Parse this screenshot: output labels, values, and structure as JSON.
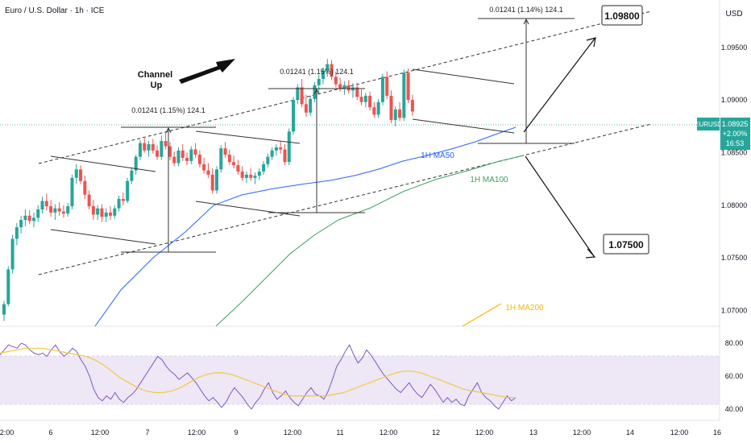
{
  "header": {
    "title": "Euro / U.S. Dollar · 1h · ICE"
  },
  "price_axis": {
    "currency": "USD",
    "ticks": [
      "1.09500",
      "1.09000",
      "1.08500",
      "1.08000",
      "1.07500",
      "1.07000"
    ],
    "symbol_tag": {
      "symbol": "EURUSD",
      "price": "1.08925",
      "change": "+2.00%",
      "countdown": "16:53"
    }
  },
  "rsi_axis": {
    "ticks": [
      "80.00",
      "60.00",
      "40.00"
    ]
  },
  "time_axis": {
    "ticks": [
      "12:00",
      "6",
      "12:00",
      "7",
      "12:00",
      "9",
      "12:00",
      "11",
      "12:00",
      "12",
      "12:00",
      "13",
      "12:00",
      "14",
      "12:00",
      "16"
    ]
  },
  "annotations": {
    "channel_label": "Channel Up",
    "measure_1": "0.01241 (1.15%) 124.1",
    "measure_2": "0.01241 (1.15%) 124.1",
    "measure_3": "0.01241 (1.14%) 124.1",
    "target_up": "1.09800",
    "target_down": "1.07500",
    "ma50_label": "1H MA50",
    "ma100_label": "1H MA100",
    "ma200_label": "1H MA200"
  },
  "colors": {
    "up": "#26a69a",
    "down": "#ef5350",
    "ma50": "#2962ff",
    "ma100": "#3fa060",
    "ma200": "#f5b800",
    "rsi": "#7e57c2",
    "rsi_ma": "#f5c842",
    "rsi_band": "#ede7f6"
  },
  "chart_data": {
    "type": "candlestick",
    "title": "Euro / U.S. Dollar · 1h · ICE",
    "ylim": [
      1.0685,
      1.0995
    ],
    "series": [
      {
        "name": "1H MA50",
        "points": [
          [
            1.0,
            1.0695
          ],
          [
            2.0,
            1.0772
          ],
          [
            2.6,
            1.081
          ],
          [
            3.3,
            1.0825
          ],
          [
            4.0,
            1.0826
          ],
          [
            4.5,
            1.0838
          ],
          [
            5.0,
            1.0846
          ],
          [
            5.5,
            1.086
          ],
          [
            5.9,
            1.0873
          ],
          [
            6.4,
            1.0887
          ]
        ]
      },
      {
        "name": "1H MA100",
        "points": [
          [
            2.05,
            1.0695
          ],
          [
            2.5,
            1.072
          ],
          [
            3.0,
            1.0752
          ],
          [
            3.5,
            1.0785
          ],
          [
            4.0,
            1.081
          ],
          [
            4.5,
            1.0828
          ],
          [
            5.0,
            1.0843
          ],
          [
            5.5,
            1.0852
          ],
          [
            6.0,
            1.086
          ],
          [
            6.3,
            1.0864
          ]
        ]
      },
      {
        "name": "1H MA200",
        "points": [
          [
            5.8,
            1.0697
          ],
          [
            6.0,
            1.0708
          ]
        ]
      }
    ],
    "channel": {
      "upper": [
        [
          0.4,
          1.0862
        ],
        [
          6.8,
          1.0989
        ]
      ],
      "lower": [
        [
          0.4,
          1.0759
        ],
        [
          6.8,
          1.0885
        ]
      ]
    },
    "targets": [
      1.098,
      1.075
    ],
    "candles_ohlc": [
      [
        1.0696,
        1.0709,
        1.069,
        1.0706
      ],
      [
        1.0706,
        1.0742,
        1.0704,
        1.0739
      ],
      [
        1.0739,
        1.0772,
        1.0735,
        1.0768
      ],
      [
        1.0768,
        1.0783,
        1.0762,
        1.0779
      ],
      [
        1.0779,
        1.079,
        1.0773,
        1.0786
      ],
      [
        1.0786,
        1.0796,
        1.078,
        1.079
      ],
      [
        1.079,
        1.0795,
        1.0782,
        1.0785
      ],
      [
        1.0785,
        1.0793,
        1.0779,
        1.0788
      ],
      [
        1.0788,
        1.08,
        1.0784,
        1.0796
      ],
      [
        1.0796,
        1.0808,
        1.0792,
        1.0804
      ],
      [
        1.0804,
        1.0811,
        1.0795,
        1.0799
      ],
      [
        1.0799,
        1.0805,
        1.0789,
        1.0793
      ],
      [
        1.0793,
        1.0801,
        1.0786,
        1.0797
      ],
      [
        1.0797,
        1.0803,
        1.079,
        1.0794
      ],
      [
        1.0794,
        1.08,
        1.0788,
        1.0792
      ],
      [
        1.0792,
        1.0802,
        1.0789,
        1.0799
      ],
      [
        1.0799,
        1.0829,
        1.0796,
        1.0826
      ],
      [
        1.0826,
        1.0839,
        1.082,
        1.0834
      ],
      [
        1.0834,
        1.0838,
        1.082,
        1.0823
      ],
      [
        1.0823,
        1.0828,
        1.0806,
        1.081
      ],
      [
        1.081,
        1.0814,
        1.0796,
        1.0799
      ],
      [
        1.0799,
        1.0805,
        1.0786,
        1.0791
      ],
      [
        1.0791,
        1.08,
        1.0786,
        1.0797
      ],
      [
        1.0797,
        1.0801,
        1.0784,
        1.0789
      ],
      [
        1.0789,
        1.0797,
        1.0784,
        1.0793
      ],
      [
        1.0793,
        1.0799,
        1.0786,
        1.079
      ],
      [
        1.079,
        1.08,
        1.0787,
        1.0797
      ],
      [
        1.0797,
        1.0809,
        1.0794,
        1.0806
      ],
      [
        1.0806,
        1.0812,
        1.08,
        1.0804
      ],
      [
        1.0804,
        1.0826,
        1.0802,
        1.0823
      ],
      [
        1.0823,
        1.0836,
        1.082,
        1.0833
      ],
      [
        1.0833,
        1.0848,
        1.0829,
        1.0846
      ],
      [
        1.0846,
        1.0862,
        1.0843,
        1.0859
      ],
      [
        1.0859,
        1.0865,
        1.085,
        1.0852
      ],
      [
        1.0852,
        1.0861,
        1.0846,
        1.0858
      ],
      [
        1.0858,
        1.0863,
        1.0849,
        1.0852
      ],
      [
        1.0852,
        1.0857,
        1.0843,
        1.0846
      ],
      [
        1.0846,
        1.0866,
        1.0843,
        1.0861
      ],
      [
        1.0861,
        1.087,
        1.0853,
        1.0856
      ],
      [
        1.0856,
        1.086,
        1.0843,
        1.0846
      ],
      [
        1.0846,
        1.0851,
        1.0837,
        1.084
      ],
      [
        1.084,
        1.0855,
        1.0837,
        1.0852
      ],
      [
        1.0852,
        1.0858,
        1.0842,
        1.0845
      ],
      [
        1.0845,
        1.085,
        1.0838,
        1.0842
      ],
      [
        1.0842,
        1.0856,
        1.0839,
        1.0853
      ],
      [
        1.0853,
        1.0859,
        1.0845,
        1.0848
      ],
      [
        1.0848,
        1.0852,
        1.0836,
        1.0839
      ],
      [
        1.0839,
        1.0845,
        1.083,
        1.0833
      ],
      [
        1.0833,
        1.084,
        1.0826,
        1.0829
      ],
      [
        1.0829,
        1.0835,
        1.0811,
        1.0814
      ],
      [
        1.0814,
        1.0837,
        1.0811,
        1.0834
      ],
      [
        1.0834,
        1.0857,
        1.0831,
        1.0854
      ],
      [
        1.0854,
        1.086,
        1.0845,
        1.0848
      ],
      [
        1.0848,
        1.0853,
        1.0838,
        1.0841
      ],
      [
        1.0841,
        1.0847,
        1.0835,
        1.0838
      ],
      [
        1.0838,
        1.0843,
        1.0829,
        1.0832
      ],
      [
        1.0832,
        1.0837,
        1.0823,
        1.0826
      ],
      [
        1.0826,
        1.0832,
        1.0821,
        1.0829
      ],
      [
        1.0829,
        1.0835,
        1.0823,
        1.0826
      ],
      [
        1.0826,
        1.0831,
        1.082,
        1.0828
      ],
      [
        1.0828,
        1.0835,
        1.0824,
        1.0832
      ],
      [
        1.0832,
        1.0842,
        1.0829,
        1.0839
      ],
      [
        1.0839,
        1.0849,
        1.0836,
        1.0846
      ],
      [
        1.0846,
        1.0855,
        1.0843,
        1.0852
      ],
      [
        1.0852,
        1.0858,
        1.0847,
        1.0855
      ],
      [
        1.0855,
        1.0861,
        1.0849,
        1.0853
      ],
      [
        1.0853,
        1.0858,
        1.0838,
        1.0841
      ],
      [
        1.0841,
        1.0873,
        1.0838,
        1.087
      ],
      [
        1.087,
        1.0903,
        1.0867,
        1.09
      ],
      [
        1.09,
        1.0915,
        1.0896,
        1.0912
      ],
      [
        1.0912,
        1.092,
        1.0893,
        1.0896
      ],
      [
        1.0896,
        1.0905,
        1.0884,
        1.0888
      ],
      [
        1.0888,
        1.0904,
        1.0885,
        1.0901
      ],
      [
        1.0901,
        1.0917,
        1.0898,
        1.0914
      ],
      [
        1.0914,
        1.0924,
        1.0907,
        1.092
      ],
      [
        1.092,
        1.0931,
        1.0915,
        1.0928
      ],
      [
        1.0928,
        1.0939,
        1.0922,
        1.0934
      ],
      [
        1.0934,
        1.0938,
        1.0919,
        1.0922
      ],
      [
        1.0922,
        1.0927,
        1.0912,
        1.0915
      ],
      [
        1.0915,
        1.0921,
        1.0908,
        1.0911
      ],
      [
        1.0911,
        1.0918,
        1.0905,
        1.0914
      ],
      [
        1.0914,
        1.0919,
        1.0906,
        1.0909
      ],
      [
        1.0909,
        1.0916,
        1.0902,
        1.0912
      ],
      [
        1.0912,
        1.0916,
        1.09,
        1.0903
      ],
      [
        1.0903,
        1.091,
        1.0895,
        1.0898
      ],
      [
        1.0898,
        1.0907,
        1.0893,
        1.0904
      ],
      [
        1.0904,
        1.0908,
        1.089,
        1.0893
      ],
      [
        1.0893,
        1.0898,
        1.0883,
        1.0886
      ],
      [
        1.0886,
        1.0901,
        1.0883,
        1.0898
      ],
      [
        1.0898,
        1.0925,
        1.0895,
        1.0922
      ],
      [
        1.0922,
        1.0927,
        1.0901,
        1.0904
      ],
      [
        1.0904,
        1.0909,
        1.0878,
        1.0881
      ],
      [
        1.0881,
        1.0894,
        1.0875,
        1.0891
      ],
      [
        1.0891,
        1.0898,
        1.088,
        1.0883
      ],
      [
        1.0883,
        1.0929,
        1.088,
        1.0926
      ],
      [
        1.0926,
        1.093,
        1.0897,
        1.09
      ],
      [
        1.09,
        1.0905,
        1.0885,
        1.0889
      ]
    ],
    "rsi": {
      "name": "RSI",
      "ylim": [
        35,
        90
      ],
      "overbought": 70,
      "oversold": 30,
      "values": [
        73,
        76,
        79,
        78,
        77,
        80,
        79,
        76,
        74,
        73,
        74,
        72,
        76,
        79,
        75,
        72,
        74,
        77,
        75,
        70,
        66,
        60,
        52,
        47,
        45,
        48,
        46,
        50,
        46,
        44,
        47,
        49,
        52,
        56,
        60,
        64,
        68,
        72,
        70,
        66,
        63,
        61,
        58,
        60,
        62,
        59,
        56,
        52,
        48,
        45,
        47,
        44,
        41,
        44,
        49,
        53,
        50,
        47,
        43,
        40,
        44,
        47,
        52,
        56,
        50,
        46,
        48,
        51,
        47,
        44,
        42,
        46,
        50,
        53,
        49,
        48,
        46,
        51,
        58,
        66,
        70,
        75,
        79,
        73,
        68,
        71,
        76,
        73,
        69,
        65,
        61,
        58,
        55,
        52,
        50,
        53,
        56,
        52,
        49,
        47,
        51,
        55,
        52,
        48,
        44,
        47,
        44,
        46,
        43,
        42,
        48,
        52,
        56,
        50,
        47,
        45,
        42,
        40,
        44,
        48,
        45,
        47
      ],
      "ma_values": [
        74,
        75,
        76,
        77,
        77,
        77,
        76,
        75,
        74,
        73,
        72,
        70,
        67,
        63,
        59,
        56,
        53,
        51,
        50,
        50,
        51,
        53,
        56,
        59,
        61,
        62,
        62,
        61,
        59,
        57,
        55,
        53,
        51,
        49,
        48,
        48,
        48,
        48,
        48,
        49,
        50,
        52,
        54,
        56,
        58,
        60,
        62,
        63,
        63,
        62,
        60,
        58,
        56,
        54,
        52,
        51,
        50,
        49,
        48,
        47,
        47
      ]
    }
  }
}
